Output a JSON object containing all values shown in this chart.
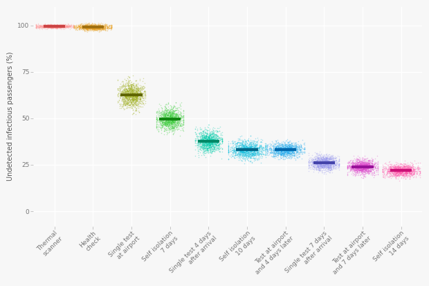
{
  "categories": [
    "Thermal\nscanner",
    "Health\ncheck",
    "Single test\nat airport",
    "Self isolation\n7 days",
    "Single test 4 days\nafter arrival",
    "Self isolation\n10 days",
    "Test at airport\nand 4 days later",
    "Single test 7 days\nafter arrival",
    "Test at airport\nand 7 days later",
    "Self isolation\n14 days"
  ],
  "means": [
    99.5,
    99.0,
    62.5,
    49.5,
    37.5,
    33.0,
    33.0,
    26.0,
    24.0,
    22.0
  ],
  "y_spreads": [
    0.5,
    0.8,
    3.5,
    3.0,
    3.0,
    2.5,
    2.0,
    2.0,
    2.0,
    1.8
  ],
  "x_spreads": [
    0.22,
    0.22,
    0.16,
    0.16,
    0.16,
    0.22,
    0.22,
    0.18,
    0.18,
    0.22
  ],
  "colors": [
    "#FF9999",
    "#E8A020",
    "#99aa10",
    "#33cc33",
    "#00ccaa",
    "#00bbdd",
    "#20aaee",
    "#9999ee",
    "#dd44cc",
    "#ff55aa"
  ],
  "median_colors": [
    "#cc4444",
    "#a07010",
    "#606600",
    "#118811",
    "#008866",
    "#006688",
    "#0066aa",
    "#4444aa",
    "#991199",
    "#cc1177"
  ],
  "ylabel": "Undetected infectious passengers (%)",
  "ylim": [
    -8,
    110
  ],
  "yticks": [
    0,
    25,
    50,
    75,
    100
  ],
  "n_points": 1200,
  "background_color": "#f7f7f7",
  "grid_color": "#ffffff",
  "tick_fontsize": 6.5,
  "median_linewidth": 3.0,
  "median_bar_halfwidth": 0.28
}
